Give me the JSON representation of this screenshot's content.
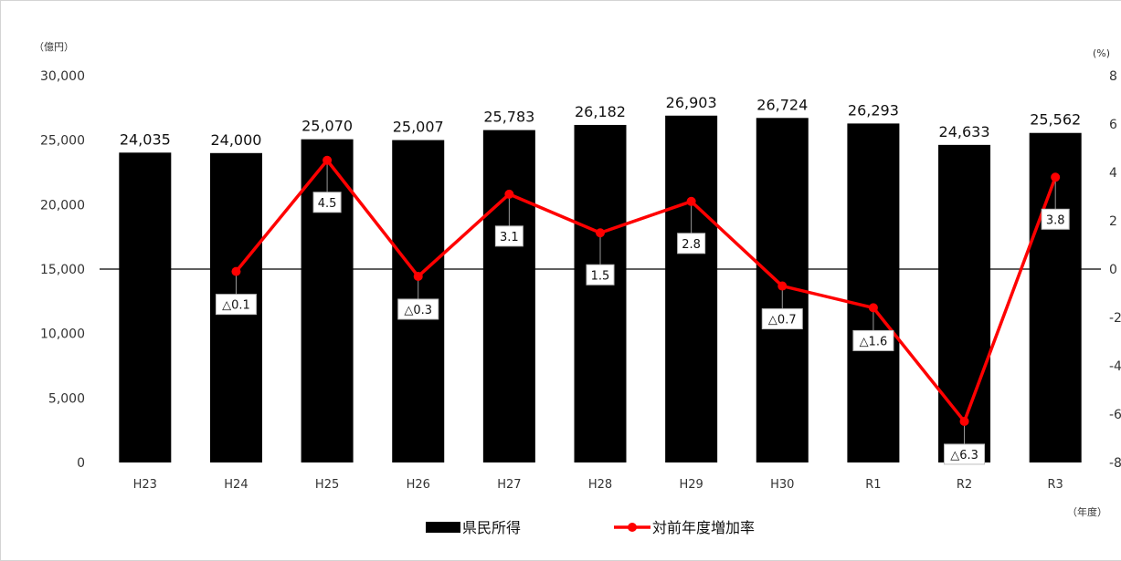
{
  "chart_data": {
    "type": "bar",
    "categories": [
      "H23",
      "H24",
      "H25",
      "H26",
      "H27",
      "H28",
      "H29",
      "H30",
      "R1",
      "R2",
      "R3"
    ],
    "series": [
      {
        "name": "県民所得",
        "type": "bar",
        "axis": "left",
        "color": "#000000",
        "values": [
          24035,
          24000,
          25070,
          25007,
          25783,
          26182,
          26903,
          26724,
          26293,
          24633,
          25562
        ],
        "labels": [
          "24,035",
          "24,000",
          "25,070",
          "25,007",
          "25,783",
          "26,182",
          "26,903",
          "26,724",
          "26,293",
          "24,633",
          "25,562"
        ]
      },
      {
        "name": "対前年度増加率",
        "type": "line",
        "axis": "right",
        "color": "#ff0000",
        "values": [
          null,
          -0.1,
          4.5,
          -0.3,
          3.1,
          1.5,
          2.8,
          -0.7,
          -1.6,
          -6.3,
          3.8
        ],
        "labels": [
          "",
          "△0.1",
          "4.5",
          "△0.3",
          "3.1",
          "1.5",
          "2.8",
          "△0.7",
          "△1.6",
          "△6.3",
          "3.8"
        ]
      }
    ],
    "left_axis": {
      "unit": "（億円）",
      "ylim": [
        0,
        30000
      ],
      "ticks": [
        0,
        5000,
        10000,
        15000,
        20000,
        25000,
        30000
      ],
      "tick_labels": [
        "0",
        "5,000",
        "10,000",
        "15,000",
        "20,000",
        "25,000",
        "30,000"
      ]
    },
    "right_axis": {
      "unit": "(%)",
      "ylim": [
        -8,
        8
      ],
      "ticks": [
        8,
        6,
        4,
        2,
        0,
        -2,
        -4,
        -6,
        -8
      ],
      "tick_labels": [
        "8",
        "6",
        "4",
        "2",
        "0",
        "-2",
        "-4",
        "-6",
        "-8"
      ]
    },
    "x_unit": "（年度）",
    "grid": false,
    "legend": "bottom-center"
  }
}
